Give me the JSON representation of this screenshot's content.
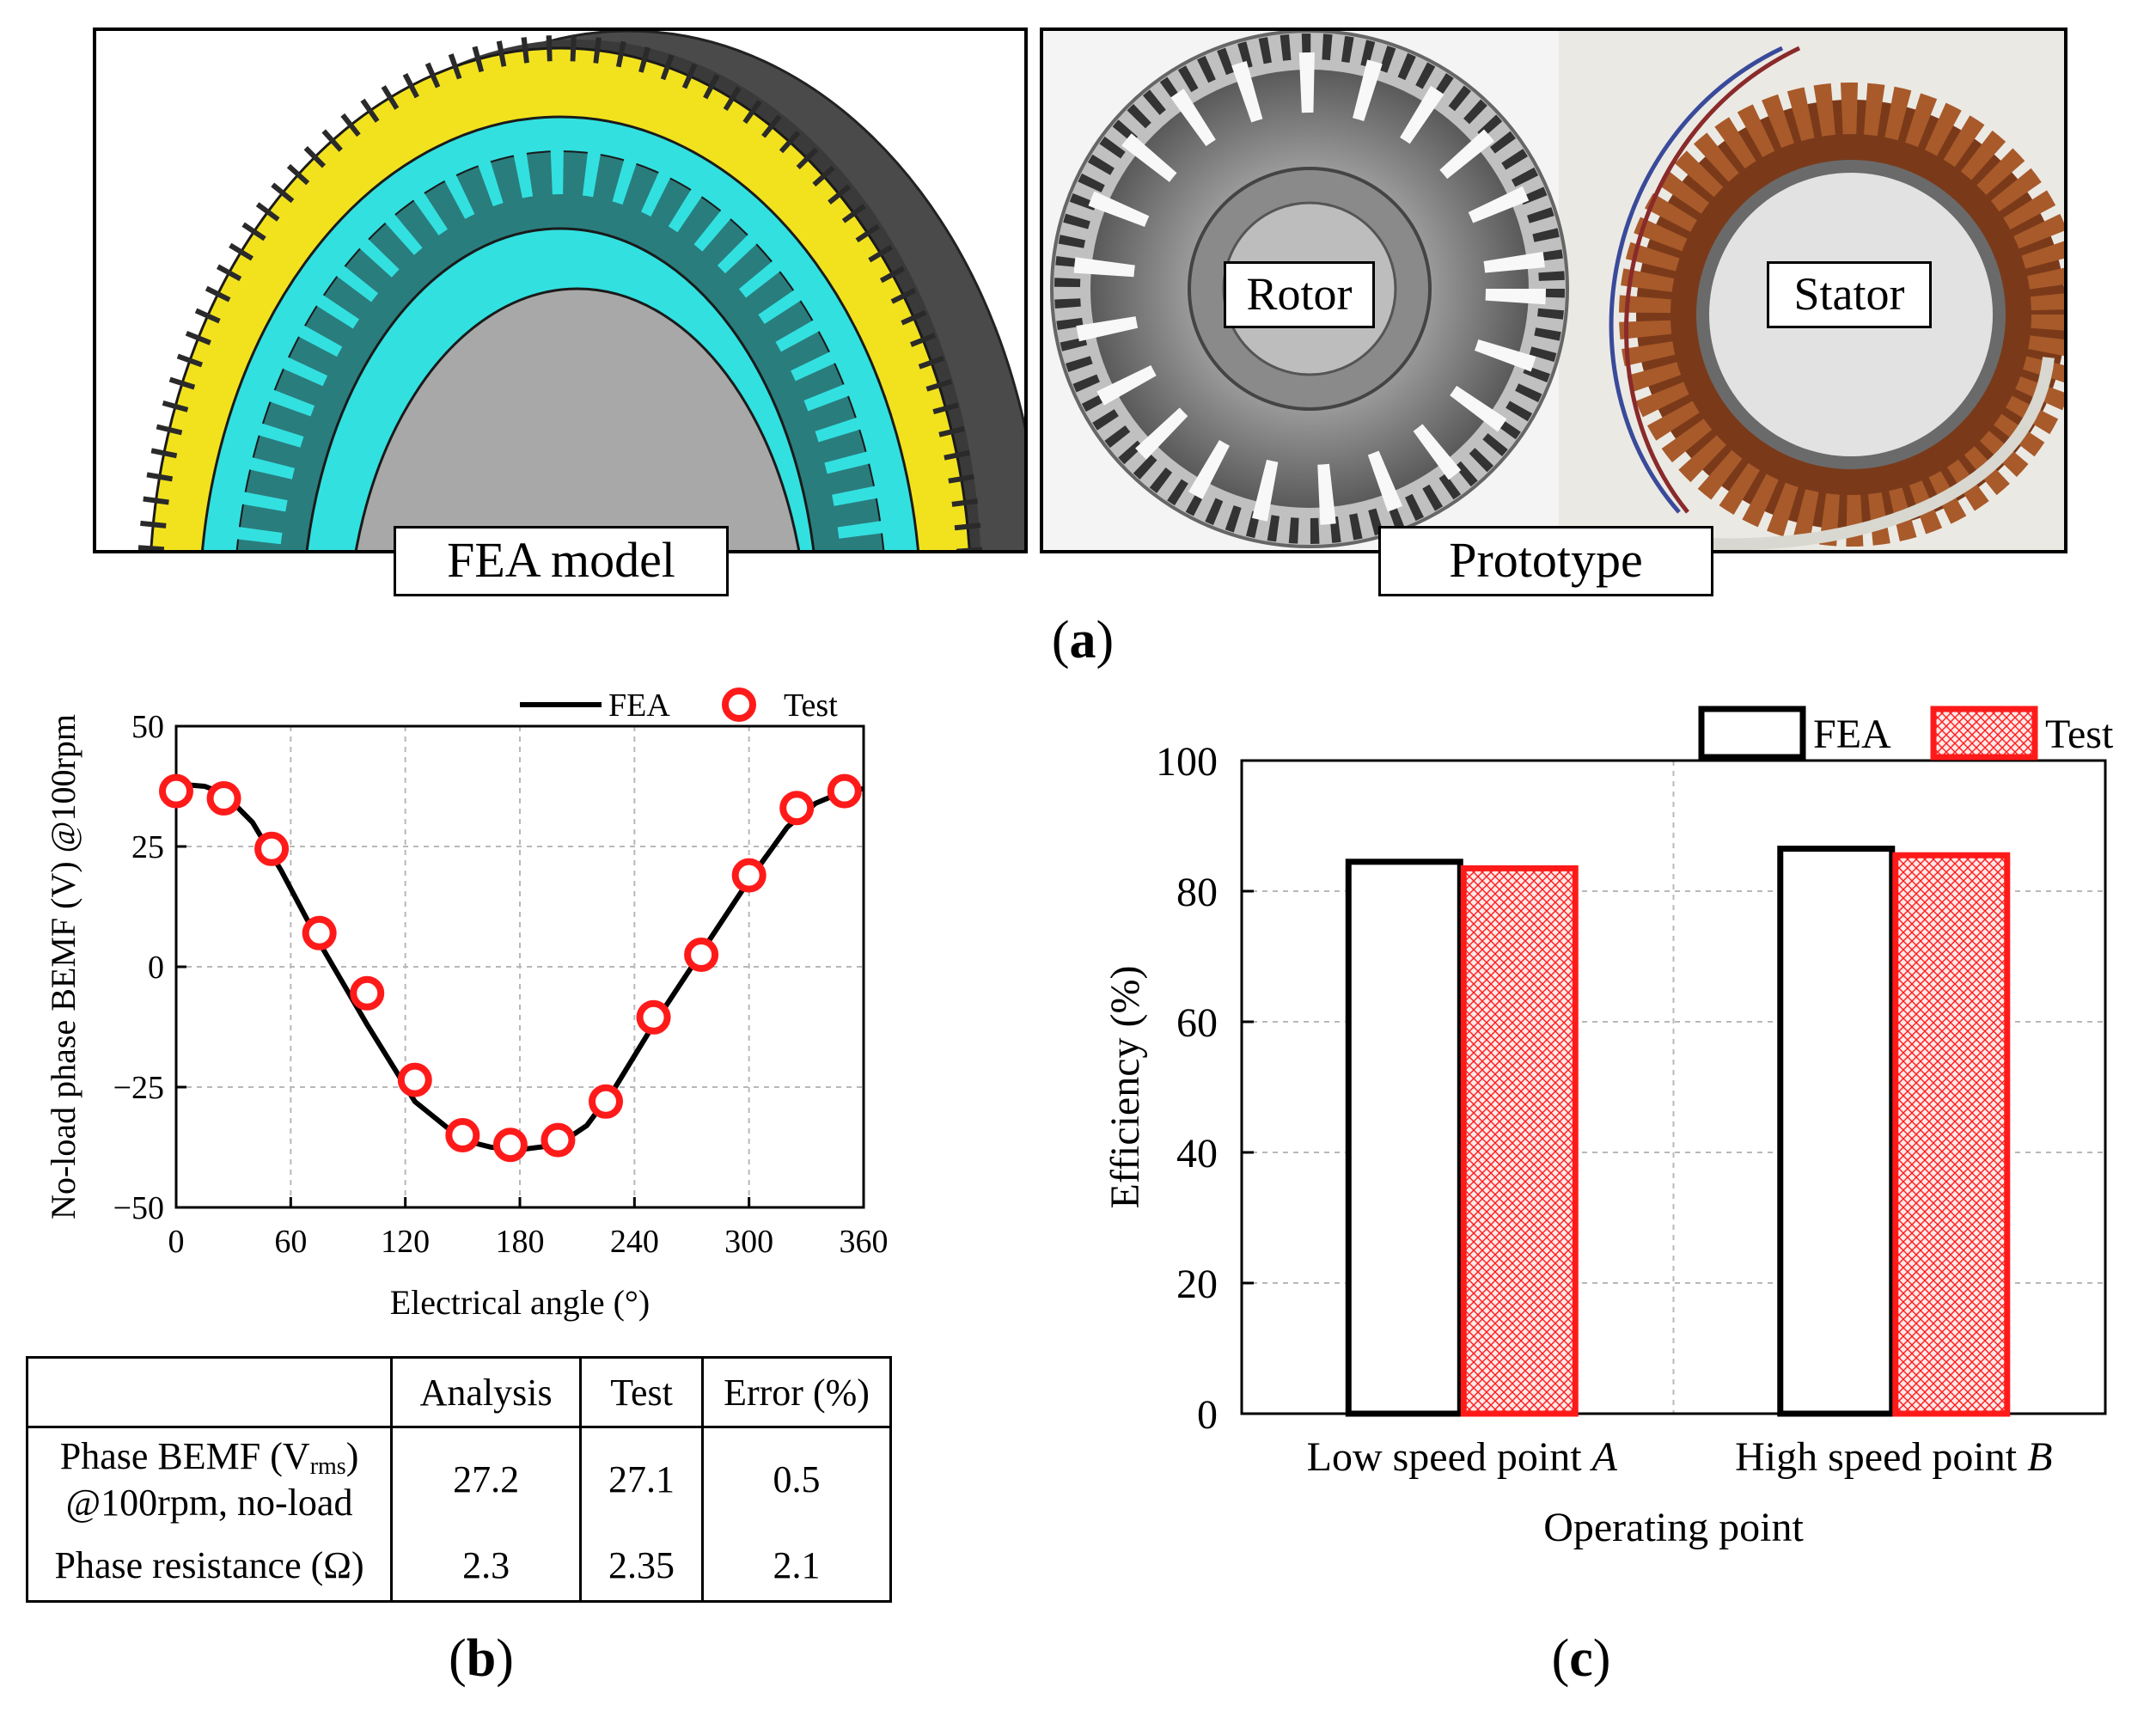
{
  "figure": {
    "panel_a": {
      "label": "a",
      "fea_caption": "FEA model",
      "prototype_caption": "Prototype",
      "rotor_label": "Rotor",
      "stator_label": "Stator"
    },
    "panel_b": {
      "label": "b"
    },
    "panel_c": {
      "label": "c"
    }
  },
  "table": {
    "headers": [
      "",
      "Analysis",
      "Test",
      "Error (%)"
    ],
    "row1": {
      "label_line1_prefix": "Phase BEMF (V",
      "label_line1_sub": "rms",
      "label_line1_suffix": ")",
      "label_line2": "@100rpm, no-load",
      "analysis": "27.2",
      "test": "27.1",
      "error": "0.5"
    },
    "row2": {
      "label": "Phase resistance (Ω)",
      "analysis": "2.3",
      "test": "2.35",
      "error": "2.1"
    }
  },
  "colors": {
    "test": "#ff1a1a",
    "fea": "#000000",
    "rotor_teal": "#33e0e0",
    "winding_yellow": "#f2e21e"
  },
  "chart_data": [
    {
      "type": "line",
      "title": "",
      "xlabel": "Electrical angle (°)",
      "ylabel": "No-load phase BEMF (V) @100rpm",
      "xlim": [
        0,
        360
      ],
      "ylim": [
        -50,
        50
      ],
      "xticks": [
        0,
        60,
        120,
        180,
        240,
        300,
        360
      ],
      "yticks": [
        -50,
        -25,
        0,
        25,
        50
      ],
      "ytick_labels": [
        "−50",
        "−25",
        "0",
        "25",
        "50"
      ],
      "legend": "top-right",
      "grid": true,
      "series": [
        {
          "name": "FEA",
          "style": "line",
          "x": [
            0,
            15,
            25,
            40,
            55,
            75,
            100,
            125,
            150,
            165,
            180,
            200,
            215,
            230,
            250,
            275,
            300,
            320,
            335,
            350,
            360
          ],
          "y": [
            38,
            37.5,
            36,
            30,
            20,
            5,
            -12,
            -28,
            -36,
            -37.5,
            -38,
            -37,
            -33,
            -25,
            -12,
            3,
            18,
            29,
            34,
            36.5,
            37
          ]
        },
        {
          "name": "Test",
          "style": "marker",
          "x": [
            0,
            25,
            50,
            75,
            100,
            125,
            150,
            175,
            200,
            225,
            250,
            275,
            300,
            325,
            350
          ],
          "y": [
            36.5,
            35,
            24.5,
            7,
            -5.5,
            -23.5,
            -35,
            -37,
            -36,
            -28,
            -10.5,
            2.5,
            19,
            33,
            36.5
          ]
        }
      ]
    },
    {
      "type": "bar",
      "title": "",
      "xlabel": "Operating point",
      "ylabel": "Efficiency (%)",
      "ylim": [
        0,
        100
      ],
      "yticks": [
        0,
        20,
        40,
        60,
        80,
        100
      ],
      "categories": [
        "Low speed point A",
        "High speed point B"
      ],
      "category_text": [
        "Low speed point ",
        "High speed point "
      ],
      "category_italic": [
        "A",
        "B"
      ],
      "legend": "top-right",
      "grid": true,
      "series": [
        {
          "name": "FEA",
          "values": [
            84.5,
            86.5
          ]
        },
        {
          "name": "Test",
          "values": [
            83.5,
            85.5
          ]
        }
      ]
    }
  ]
}
